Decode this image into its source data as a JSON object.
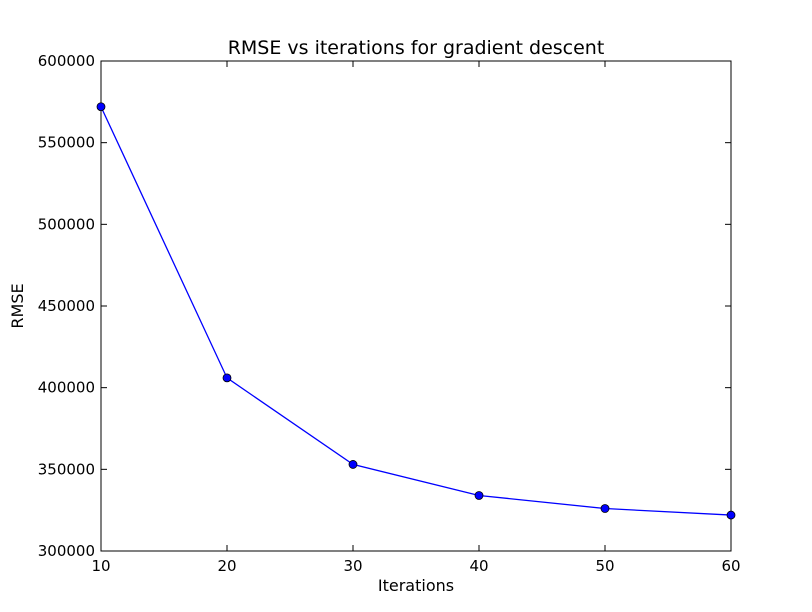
{
  "chart_data": {
    "type": "line",
    "title": "RMSE vs iterations for gradient descent",
    "xlabel": "Iterations",
    "ylabel": "RMSE",
    "x": [
      10,
      20,
      30,
      40,
      50,
      60
    ],
    "series": [
      {
        "values": [
          572000,
          406000,
          353000,
          334000,
          326000,
          322000
        ],
        "color": "#0000ff",
        "marker": "circle"
      }
    ],
    "xlim": [
      10,
      60
    ],
    "ylim": [
      300000,
      600000
    ],
    "xticks": [
      10,
      20,
      30,
      40,
      50,
      60
    ],
    "yticks": [
      300000,
      350000,
      400000,
      450000,
      500000,
      550000,
      600000
    ],
    "xtick_labels": [
      "10",
      "20",
      "30",
      "40",
      "50",
      "60"
    ],
    "ytick_labels": [
      "300000",
      "350000",
      "400000",
      "450000",
      "500000",
      "550000",
      "600000"
    ],
    "grid": false,
    "legend": "none"
  }
}
